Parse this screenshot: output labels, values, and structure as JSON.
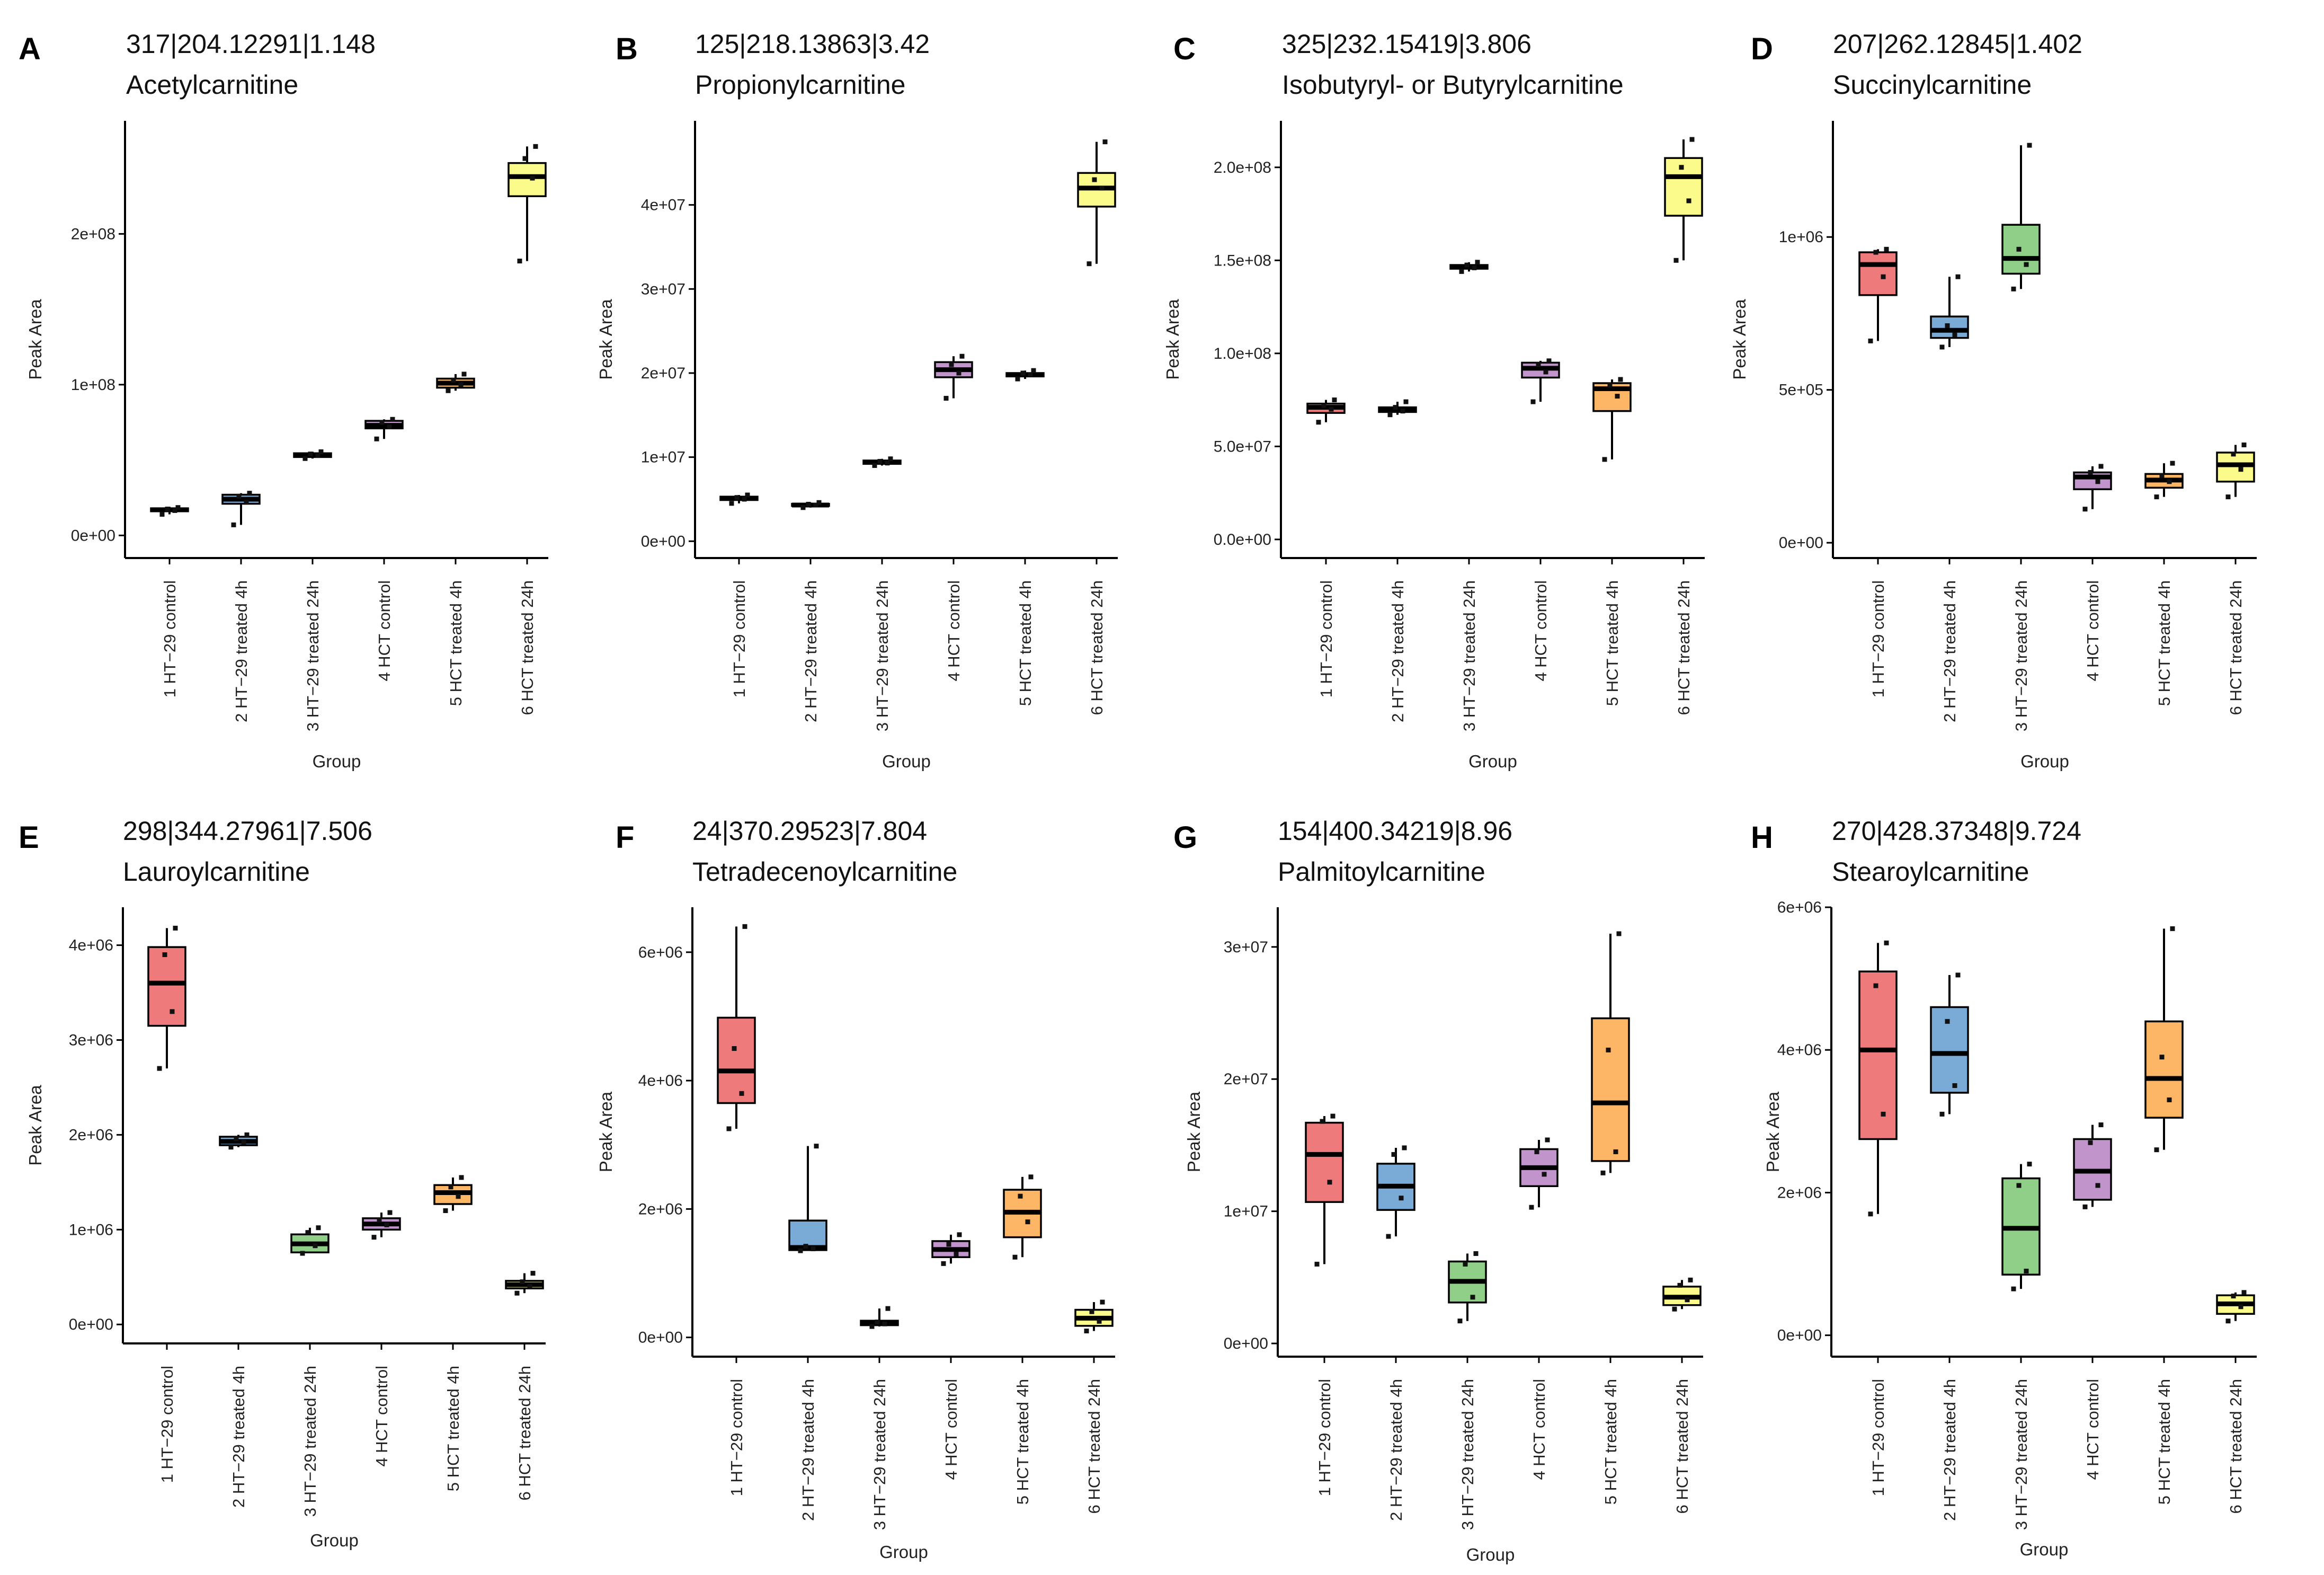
{
  "colors": {
    "group1": "#ef7a7c",
    "group2": "#7aaad6",
    "group3": "#8fcf88",
    "group4": "#c195cb",
    "group5": "#fdb566",
    "group6": "#fbfb8c"
  },
  "chart_data": [
    {
      "type": "box",
      "letter": "A",
      "id_label": "317|204.12291|1.148",
      "compound": "Acetylcarnitine",
      "xlabel": "Group",
      "ylabel": "Peak Area",
      "ylim": [
        -15000000,
        275000000
      ],
      "yticks": [
        0,
        100000000,
        200000000
      ],
      "ytick_labels": [
        "0e+00",
        "1e+08",
        "2e+08"
      ],
      "categories": [
        "1 HT−29 control",
        "2 HT−29 treated 4h",
        "3 HT−29 treated 24h",
        "4 HCT control",
        "5 HCT treated 4h",
        "6 HCT treated 24h"
      ],
      "boxes": [
        {
          "min": 14000000,
          "q1": 16000000,
          "median": 17000000,
          "q3": 18000000,
          "max": 19000000,
          "points": [
            14000000,
            16500000,
            17500000,
            18500000
          ]
        },
        {
          "min": 7000000,
          "q1": 21000000,
          "median": 24000000,
          "q3": 27000000,
          "max": 28000000,
          "points": [
            7000000,
            22000000,
            26000000,
            28000000
          ]
        },
        {
          "min": 51000000,
          "q1": 52000000,
          "median": 53000000,
          "q3": 54500000,
          "max": 55500000,
          "points": [
            51000000,
            53000000,
            54000000,
            55500000
          ]
        },
        {
          "min": 64000000,
          "q1": 71000000,
          "median": 73000000,
          "q3": 76000000,
          "max": 77000000,
          "points": [
            64000000,
            72000000,
            75000000,
            77000000
          ]
        },
        {
          "min": 96000000,
          "q1": 98000000,
          "median": 101000000,
          "q3": 104000000,
          "max": 107000000,
          "points": [
            96000000,
            100000000,
            103000000,
            107000000
          ]
        },
        {
          "min": 182000000,
          "q1": 225000000,
          "median": 238000000,
          "q3": 247000000,
          "max": 258000000,
          "points": [
            182000000,
            237000000,
            250000000,
            258000000
          ]
        }
      ]
    },
    {
      "type": "box",
      "letter": "B",
      "id_label": "125|218.13863|3.42",
      "compound": "Propionylcarnitine",
      "xlabel": "Group",
      "ylabel": "Peak Area",
      "ylim": [
        -2000000,
        50000000
      ],
      "yticks": [
        0,
        10000000,
        20000000,
        30000000,
        40000000
      ],
      "ytick_labels": [
        "0e+00",
        "1e+07",
        "2e+07",
        "3e+07",
        "4e+07"
      ],
      "categories": [
        "1 HT−29 control",
        "2 HT−29 treated 4h",
        "3 HT−29 treated 24h",
        "4 HCT control",
        "5 HCT treated 4h",
        "6 HCT treated 24h"
      ],
      "boxes": [
        {
          "min": 4500000,
          "q1": 4900000,
          "median": 5100000,
          "q3": 5300000,
          "max": 5500000,
          "points": [
            4500000,
            5000000,
            5200000,
            5500000
          ]
        },
        {
          "min": 4000000,
          "q1": 4200000,
          "median": 4300000,
          "q3": 4450000,
          "max": 4600000,
          "points": [
            4000000,
            4300000,
            4400000,
            4600000
          ]
        },
        {
          "min": 9000000,
          "q1": 9200000,
          "median": 9400000,
          "q3": 9600000,
          "max": 9800000,
          "points": [
            9000000,
            9300000,
            9500000,
            9800000
          ]
        },
        {
          "min": 17000000,
          "q1": 19500000,
          "median": 20400000,
          "q3": 21300000,
          "max": 22000000,
          "points": [
            17000000,
            20000000,
            21000000,
            22000000
          ]
        },
        {
          "min": 19300000,
          "q1": 19600000,
          "median": 19800000,
          "q3": 20000000,
          "max": 20300000,
          "points": [
            19300000,
            19800000,
            20000000,
            20300000
          ]
        },
        {
          "min": 33000000,
          "q1": 39800000,
          "median": 42000000,
          "q3": 43800000,
          "max": 47500000,
          "points": [
            33000000,
            42000000,
            43000000,
            47500000
          ]
        }
      ]
    },
    {
      "type": "box",
      "letter": "C",
      "id_label": "325|232.15419|3.806",
      "compound": "Isobutyryl- or Butyrylcarnitine",
      "xlabel": "Group",
      "ylabel": "Peak Area",
      "ylim": [
        -10000000,
        225000000
      ],
      "yticks": [
        0,
        50000000,
        100000000,
        150000000,
        200000000
      ],
      "ytick_labels": [
        "0.0e+00",
        "5.0e+07",
        "1.0e+08",
        "1.5e+08",
        "2.0e+08"
      ],
      "categories": [
        "1 HT−29 control",
        "2 HT−29 treated 4h",
        "3 HT−29 treated 24h",
        "4 HCT control",
        "5 HCT treated 4h",
        "6 HCT treated 24h"
      ],
      "boxes": [
        {
          "min": 63000000,
          "q1": 68000000,
          "median": 71000000,
          "q3": 73000000,
          "max": 75000000,
          "points": [
            63000000,
            70000000,
            72000000,
            75000000
          ]
        },
        {
          "min": 67000000,
          "q1": 68500000,
          "median": 69500000,
          "q3": 71000000,
          "max": 74000000,
          "points": [
            67000000,
            69000000,
            71000000,
            74000000
          ]
        },
        {
          "min": 144000000,
          "q1": 145500000,
          "median": 146500000,
          "q3": 147500000,
          "max": 149000000,
          "points": [
            144000000,
            146000000,
            147500000,
            149000000
          ]
        },
        {
          "min": 74000000,
          "q1": 87000000,
          "median": 92000000,
          "q3": 95000000,
          "max": 96000000,
          "points": [
            74000000,
            90000000,
            94000000,
            96000000
          ]
        },
        {
          "min": 43000000,
          "q1": 69000000,
          "median": 81000000,
          "q3": 84000000,
          "max": 86000000,
          "points": [
            43000000,
            77000000,
            83000000,
            86000000
          ]
        },
        {
          "min": 150000000,
          "q1": 174000000,
          "median": 195000000,
          "q3": 205000000,
          "max": 215000000,
          "points": [
            150000000,
            182000000,
            200000000,
            215000000
          ]
        }
      ]
    },
    {
      "type": "box",
      "letter": "D",
      "id_label": "207|262.12845|1.402",
      "compound": "Succinylcarnitine",
      "xlabel": "Group",
      "ylabel": "Peak Area",
      "ylim": [
        -50000,
        1380000
      ],
      "yticks": [
        0,
        500000,
        1000000
      ],
      "ytick_labels": [
        "0e+00",
        "5e+05",
        "1e+06"
      ],
      "categories": [
        "1 HT−29 control",
        "2 HT−29 treated 4h",
        "3 HT−29 treated 24h",
        "4 HCT control",
        "5 HCT treated 4h",
        "6 HCT treated 24h"
      ],
      "boxes": [
        {
          "min": 660000,
          "q1": 810000,
          "median": 910000,
          "q3": 950000,
          "max": 960000,
          "points": [
            660000,
            870000,
            950000,
            960000
          ]
        },
        {
          "min": 640000,
          "q1": 670000,
          "median": 695000,
          "q3": 740000,
          "max": 870000,
          "points": [
            640000,
            680000,
            710000,
            870000
          ]
        },
        {
          "min": 830000,
          "q1": 880000,
          "median": 930000,
          "q3": 1040000,
          "max": 1300000,
          "points": [
            830000,
            910000,
            960000,
            1300000
          ]
        },
        {
          "min": 110000,
          "q1": 175000,
          "median": 215000,
          "q3": 230000,
          "max": 250000,
          "points": [
            110000,
            200000,
            230000,
            250000
          ]
        },
        {
          "min": 150000,
          "q1": 180000,
          "median": 205000,
          "q3": 225000,
          "max": 260000,
          "points": [
            150000,
            200000,
            220000,
            260000
          ]
        },
        {
          "min": 150000,
          "q1": 200000,
          "median": 255000,
          "q3": 295000,
          "max": 320000,
          "points": [
            150000,
            240000,
            290000,
            320000
          ]
        }
      ]
    },
    {
      "type": "box",
      "letter": "E",
      "id_label": "298|344.27961|7.506",
      "compound": "Lauroylcarnitine",
      "xlabel": "Group",
      "ylabel": "Peak Area",
      "ylim": [
        -200000,
        4400000
      ],
      "yticks": [
        0,
        1000000,
        2000000,
        3000000,
        4000000
      ],
      "ytick_labels": [
        "0e+00",
        "1e+06",
        "2e+06",
        "3e+06",
        "4e+06"
      ],
      "categories": [
        "1 HT−29 control",
        "2 HT−29 treated 4h",
        "3 HT−29 treated 24h",
        "4 HCT control",
        "5 HCT treated 4h",
        "6 HCT treated 24h"
      ],
      "boxes": [
        {
          "min": 2700000,
          "q1": 3150000,
          "median": 3600000,
          "q3": 3980000,
          "max": 4180000,
          "points": [
            2700000,
            3300000,
            3900000,
            4180000
          ]
        },
        {
          "min": 1870000,
          "q1": 1890000,
          "median": 1930000,
          "q3": 1980000,
          "max": 2000000,
          "points": [
            1870000,
            1920000,
            1960000,
            2000000
          ]
        },
        {
          "min": 750000,
          "q1": 760000,
          "median": 850000,
          "q3": 950000,
          "max": 1020000,
          "points": [
            750000,
            830000,
            970000,
            1020000
          ]
        },
        {
          "min": 920000,
          "q1": 1000000,
          "median": 1060000,
          "q3": 1120000,
          "max": 1180000,
          "points": [
            920000,
            1050000,
            1100000,
            1180000
          ]
        },
        {
          "min": 1200000,
          "q1": 1270000,
          "median": 1390000,
          "q3": 1470000,
          "max": 1550000,
          "points": [
            1200000,
            1350000,
            1450000,
            1550000
          ]
        },
        {
          "min": 330000,
          "q1": 380000,
          "median": 420000,
          "q3": 460000,
          "max": 540000,
          "points": [
            330000,
            400000,
            450000,
            540000
          ]
        }
      ]
    },
    {
      "type": "box",
      "letter": "F",
      "id_label": "24|370.29523|7.804",
      "compound": "Tetradecenoylcarnitine",
      "xlabel": "Group",
      "ylabel": "Peak Area",
      "ylim": [
        -300000,
        6700000
      ],
      "yticks": [
        0,
        2000000,
        4000000,
        6000000
      ],
      "ytick_labels": [
        "0e+00",
        "2e+06",
        "4e+06",
        "6e+06"
      ],
      "categories": [
        "1 HT−29 control",
        "2 HT−29 treated 4h",
        "3 HT−29 treated 24h",
        "4 HCT control",
        "5 HCT treated 4h",
        "6 HCT treated 24h"
      ],
      "boxes": [
        {
          "min": 3250000,
          "q1": 3650000,
          "median": 4150000,
          "q3": 4980000,
          "max": 6400000,
          "points": [
            3250000,
            3800000,
            4500000,
            6400000
          ]
        },
        {
          "min": 1350000,
          "q1": 1360000,
          "median": 1400000,
          "q3": 1820000,
          "max": 2980000,
          "points": [
            1350000,
            1380000,
            1420000,
            2980000
          ]
        },
        {
          "min": 170000,
          "q1": 190000,
          "median": 220000,
          "q3": 260000,
          "max": 450000,
          "points": [
            170000,
            210000,
            240000,
            450000
          ]
        },
        {
          "min": 1150000,
          "q1": 1250000,
          "median": 1370000,
          "q3": 1500000,
          "max": 1600000,
          "points": [
            1150000,
            1300000,
            1450000,
            1600000
          ]
        },
        {
          "min": 1250000,
          "q1": 1560000,
          "median": 1950000,
          "q3": 2300000,
          "max": 2500000,
          "points": [
            1250000,
            1800000,
            2200000,
            2500000
          ]
        },
        {
          "min": 100000,
          "q1": 180000,
          "median": 300000,
          "q3": 430000,
          "max": 550000,
          "points": [
            100000,
            250000,
            400000,
            550000
          ]
        }
      ]
    },
    {
      "type": "box",
      "letter": "G",
      "id_label": "154|400.34219|8.96",
      "compound": "Palmitoylcarnitine",
      "xlabel": "Group",
      "ylabel": "Peak Area",
      "ylim": [
        -1000000,
        33000000
      ],
      "yticks": [
        0,
        10000000,
        20000000,
        30000000
      ],
      "ytick_labels": [
        "0e+00",
        "1e+07",
        "2e+07",
        "3e+07"
      ],
      "categories": [
        "1 HT−29 control",
        "2 HT−29 treated 4h",
        "3 HT−29 treated 24h",
        "4 HCT control",
        "5 HCT treated 4h",
        "6 HCT treated 24h"
      ],
      "boxes": [
        {
          "min": 6000000,
          "q1": 10700000,
          "median": 14300000,
          "q3": 16700000,
          "max": 17200000,
          "points": [
            6000000,
            12200000,
            16800000,
            17200000
          ]
        },
        {
          "min": 8100000,
          "q1": 10100000,
          "median": 11900000,
          "q3": 13600000,
          "max": 14800000,
          "points": [
            8100000,
            11000000,
            14300000,
            14800000
          ]
        },
        {
          "min": 1700000,
          "q1": 3100000,
          "median": 4700000,
          "q3": 6200000,
          "max": 6800000,
          "points": [
            1700000,
            3500000,
            6000000,
            6800000
          ]
        },
        {
          "min": 10300000,
          "q1": 11900000,
          "median": 13300000,
          "q3": 14700000,
          "max": 15400000,
          "points": [
            10300000,
            12800000,
            14500000,
            15400000
          ]
        },
        {
          "min": 12900000,
          "q1": 13800000,
          "median": 18200000,
          "q3": 24600000,
          "max": 31000000,
          "points": [
            12900000,
            14500000,
            22200000,
            31000000
          ]
        },
        {
          "min": 2600000,
          "q1": 2900000,
          "median": 3500000,
          "q3": 4300000,
          "max": 4800000,
          "points": [
            2600000,
            3300000,
            4400000,
            4800000
          ]
        }
      ]
    },
    {
      "type": "box",
      "letter": "H",
      "id_label": "270|428.37348|9.724",
      "compound": "Stearoylcarnitine",
      "xlabel": "Group",
      "ylabel": "Peak Area",
      "ylim": [
        -300000,
        6000000
      ],
      "yticks": [
        0,
        2000000,
        4000000,
        6000000
      ],
      "ytick_labels": [
        "0e+00",
        "2e+06",
        "4e+06",
        "6e+06"
      ],
      "categories": [
        "1 HT−29 control",
        "2 HT−29 treated 4h",
        "3 HT−29 treated 24h",
        "4 HCT control",
        "5 HCT treated 4h",
        "6 HCT treated 24h"
      ],
      "boxes": [
        {
          "min": 1700000,
          "q1": 2750000,
          "median": 4000000,
          "q3": 5100000,
          "max": 5500000,
          "points": [
            1700000,
            3100000,
            4900000,
            5500000
          ]
        },
        {
          "min": 3100000,
          "q1": 3400000,
          "median": 3950000,
          "q3": 4600000,
          "max": 5050000,
          "points": [
            3100000,
            3500000,
            4400000,
            5050000
          ]
        },
        {
          "min": 650000,
          "q1": 850000,
          "median": 1500000,
          "q3": 2200000,
          "max": 2400000,
          "points": [
            650000,
            900000,
            2100000,
            2400000
          ]
        },
        {
          "min": 1800000,
          "q1": 1900000,
          "median": 2300000,
          "q3": 2750000,
          "max": 2950000,
          "points": [
            1800000,
            2100000,
            2700000,
            2950000
          ]
        },
        {
          "min": 2600000,
          "q1": 3050000,
          "median": 3600000,
          "q3": 4400000,
          "max": 5700000,
          "points": [
            2600000,
            3300000,
            3900000,
            5700000
          ]
        },
        {
          "min": 200000,
          "q1": 300000,
          "median": 440000,
          "q3": 560000,
          "max": 600000,
          "points": [
            200000,
            400000,
            550000,
            600000
          ]
        }
      ]
    }
  ]
}
